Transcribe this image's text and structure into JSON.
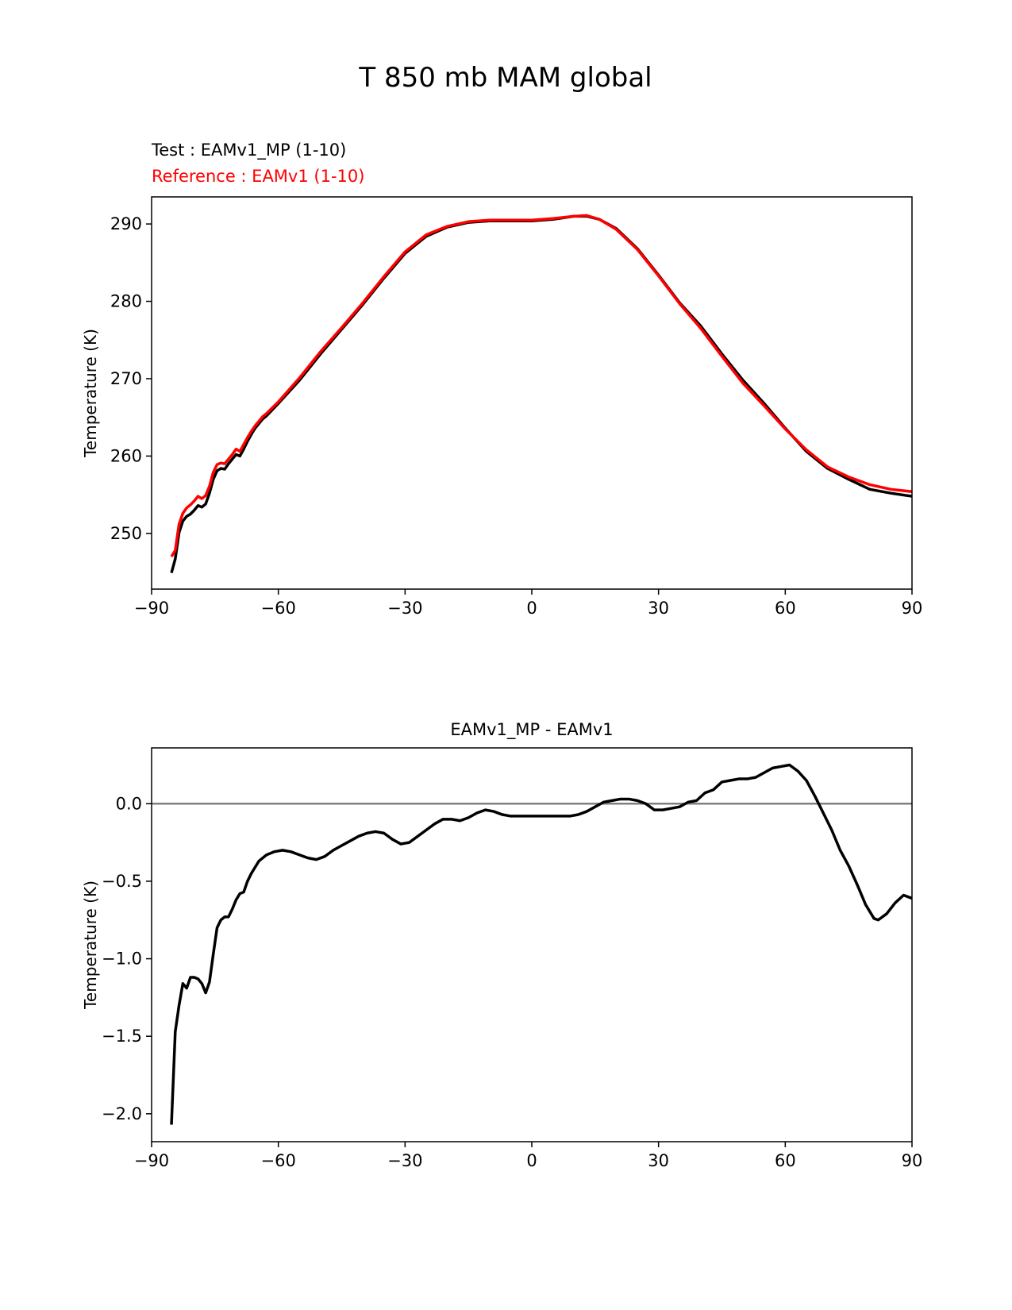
{
  "page_title": "T 850 mb MAM global",
  "colors": {
    "test": "#000000",
    "reference": "#ff0000",
    "zero_line": "#808080"
  },
  "chart_data": [
    {
      "type": "line",
      "test_label": "Test : EAMv1_MP (1-10)",
      "reference_label": "Reference : EAMv1 (1-10)",
      "xlabel": "",
      "ylabel": "Temperature (K)",
      "xlim": [
        -90,
        90
      ],
      "ylim": [
        242.8,
        293.5
      ],
      "xticks": [
        -90,
        -60,
        -30,
        0,
        30,
        60,
        90
      ],
      "yticks": [
        250,
        260,
        270,
        280,
        290
      ],
      "xtick_labels": [
        "−90",
        "−60",
        "−30",
        "0",
        "30",
        "60",
        "90"
      ],
      "ytick_labels": [
        "250",
        "260",
        "270",
        "280",
        "290"
      ],
      "grid": false,
      "series": [
        {
          "name": "EAMv1_MP (1-10)",
          "color": "#000000",
          "x": [
            -85.3,
            -84.4,
            -83.5,
            -82.6,
            -81.7,
            -80.8,
            -79.9,
            -79.0,
            -78.1,
            -77.2,
            -76.3,
            -75.4,
            -74.5,
            -73.6,
            -72.7,
            -71.8,
            -70.9,
            -70.0,
            -69.1,
            -68.2,
            -67.3,
            -66.4,
            -65.5,
            -64.6,
            -63.7,
            -62.8,
            -60,
            -55,
            -50,
            -45,
            -40,
            -35,
            -30,
            -25,
            -20,
            -15,
            -10,
            -5,
            0,
            5,
            10,
            13,
            16,
            20,
            25,
            30,
            35,
            40,
            45,
            50,
            55,
            60,
            65,
            70,
            75,
            80,
            85,
            90
          ],
          "y": [
            244.9,
            246.7,
            250.1,
            251.6,
            252.2,
            252.5,
            253.0,
            253.6,
            253.4,
            253.8,
            255.2,
            257.0,
            258.1,
            258.4,
            258.3,
            259.0,
            259.6,
            260.2,
            260.0,
            260.9,
            261.9,
            262.8,
            263.6,
            264.2,
            264.8,
            265.2,
            266.8,
            269.8,
            273.2,
            276.4,
            279.6,
            283.0,
            286.2,
            288.4,
            289.6,
            290.2,
            290.4,
            290.4,
            290.4,
            290.6,
            291.0,
            291.0,
            290.6,
            289.4,
            286.8,
            283.4,
            279.8,
            276.8,
            273.2,
            269.8,
            266.8,
            263.6,
            260.6,
            258.4,
            257.0,
            255.7,
            255.2,
            254.8
          ]
        },
        {
          "name": "EAMv1 (1-10)",
          "color": "#ff0000",
          "x": [
            -85.3,
            -84.4,
            -83.5,
            -82.6,
            -81.7,
            -80.8,
            -79.9,
            -79.0,
            -78.1,
            -77.2,
            -76.3,
            -75.4,
            -74.5,
            -73.6,
            -72.7,
            -71.8,
            -70.9,
            -70.0,
            -69.1,
            -68.2,
            -67.3,
            -66.4,
            -65.5,
            -64.6,
            -63.7,
            -62.8,
            -60,
            -55,
            -50,
            -45,
            -40,
            -35,
            -30,
            -25,
            -20,
            -15,
            -10,
            -5,
            0,
            5,
            10,
            13,
            16,
            20,
            25,
            30,
            35,
            40,
            45,
            50,
            55,
            60,
            65,
            70,
            75,
            80,
            85,
            90
          ],
          "y": [
            247.0,
            247.8,
            251.2,
            252.6,
            253.3,
            253.7,
            254.2,
            254.8,
            254.5,
            254.9,
            256.1,
            257.9,
            258.9,
            259.1,
            259.0,
            259.6,
            260.2,
            260.9,
            260.6,
            261.5,
            262.4,
            263.2,
            263.9,
            264.5,
            265.1,
            265.5,
            267.0,
            270.1,
            273.5,
            276.6,
            279.8,
            283.2,
            286.4,
            288.6,
            289.7,
            290.3,
            290.5,
            290.5,
            290.5,
            290.7,
            291.0,
            291.1,
            290.6,
            289.3,
            286.7,
            283.3,
            279.7,
            276.5,
            272.9,
            269.4,
            266.5,
            263.5,
            260.8,
            258.6,
            257.3,
            256.3,
            255.7,
            255.4
          ]
        }
      ]
    },
    {
      "type": "line",
      "title": "EAMv1_MP - EAMv1",
      "xlabel": "",
      "ylabel": "Temperature (K)",
      "xlim": [
        -90,
        90
      ],
      "ylim": [
        -2.18,
        0.36
      ],
      "xticks": [
        -90,
        -60,
        -30,
        0,
        30,
        60,
        90
      ],
      "yticks": [
        -2.0,
        -1.5,
        -1.0,
        -0.5,
        0.0
      ],
      "xtick_labels": [
        "−90",
        "−60",
        "−30",
        "0",
        "30",
        "60",
        "90"
      ],
      "ytick_labels": [
        "−2.0",
        "−1.5",
        "−1.0",
        "−0.5",
        "0.0"
      ],
      "zero_line": 0,
      "grid": false,
      "series": [
        {
          "name": "EAMv1_MP - EAMv1",
          "color": "#000000",
          "x": [
            -85.3,
            -84.4,
            -83.5,
            -82.6,
            -81.7,
            -80.8,
            -79.9,
            -79.0,
            -78.1,
            -77.2,
            -76.3,
            -75.4,
            -74.5,
            -73.6,
            -72.7,
            -71.8,
            -70.9,
            -70.0,
            -69.1,
            -68.2,
            -67.3,
            -66.4,
            -65.5,
            -64.6,
            -63.7,
            -62.8,
            -61.0,
            -59.0,
            -57.0,
            -55.0,
            -53.0,
            -51.0,
            -49.0,
            -47.0,
            -45.0,
            -43.0,
            -41.0,
            -39.0,
            -37.0,
            -35.0,
            -33.0,
            -31.0,
            -29.0,
            -27.0,
            -25.0,
            -23.0,
            -21.0,
            -19.0,
            -17.0,
            -15.0,
            -13.0,
            -11.0,
            -9.0,
            -7.0,
            -5.0,
            -3.0,
            -1.0,
            1.0,
            3.0,
            5.0,
            7.0,
            9.0,
            11.0,
            13.0,
            15.0,
            17.0,
            19.0,
            21.0,
            23.0,
            25.0,
            27.0,
            29.0,
            31.0,
            33.0,
            35.0,
            37.0,
            39.0,
            41.0,
            43.0,
            45.0,
            47.0,
            49.0,
            51.0,
            53.0,
            55.0,
            57.0,
            59.0,
            61.0,
            63.0,
            65.0,
            67.0,
            69.0,
            71.0,
            73.0,
            75.0,
            77.0,
            79.0,
            81.0,
            82.0,
            84.0,
            86.0,
            88.0,
            90.0
          ],
          "y": [
            -2.07,
            -1.47,
            -1.3,
            -1.16,
            -1.19,
            -1.12,
            -1.12,
            -1.13,
            -1.16,
            -1.22,
            -1.15,
            -0.97,
            -0.8,
            -0.75,
            -0.73,
            -0.73,
            -0.68,
            -0.62,
            -0.58,
            -0.57,
            -0.5,
            -0.45,
            -0.41,
            -0.37,
            -0.35,
            -0.33,
            -0.31,
            -0.3,
            -0.31,
            -0.33,
            -0.35,
            -0.36,
            -0.34,
            -0.3,
            -0.27,
            -0.24,
            -0.21,
            -0.19,
            -0.18,
            -0.19,
            -0.23,
            -0.26,
            -0.25,
            -0.21,
            -0.17,
            -0.13,
            -0.1,
            -0.1,
            -0.11,
            -0.09,
            -0.06,
            -0.04,
            -0.05,
            -0.07,
            -0.08,
            -0.08,
            -0.08,
            -0.08,
            -0.08,
            -0.08,
            -0.08,
            -0.08,
            -0.07,
            -0.05,
            -0.02,
            0.01,
            0.02,
            0.03,
            0.03,
            0.02,
            0.0,
            -0.04,
            -0.04,
            -0.03,
            -0.02,
            0.01,
            0.02,
            0.07,
            0.09,
            0.14,
            0.15,
            0.16,
            0.16,
            0.17,
            0.2,
            0.23,
            0.24,
            0.25,
            0.21,
            0.15,
            0.05,
            -0.06,
            -0.17,
            -0.3,
            -0.4,
            -0.52,
            -0.65,
            -0.74,
            -0.75,
            -0.71,
            -0.64,
            -0.59,
            -0.61
          ]
        }
      ]
    }
  ]
}
